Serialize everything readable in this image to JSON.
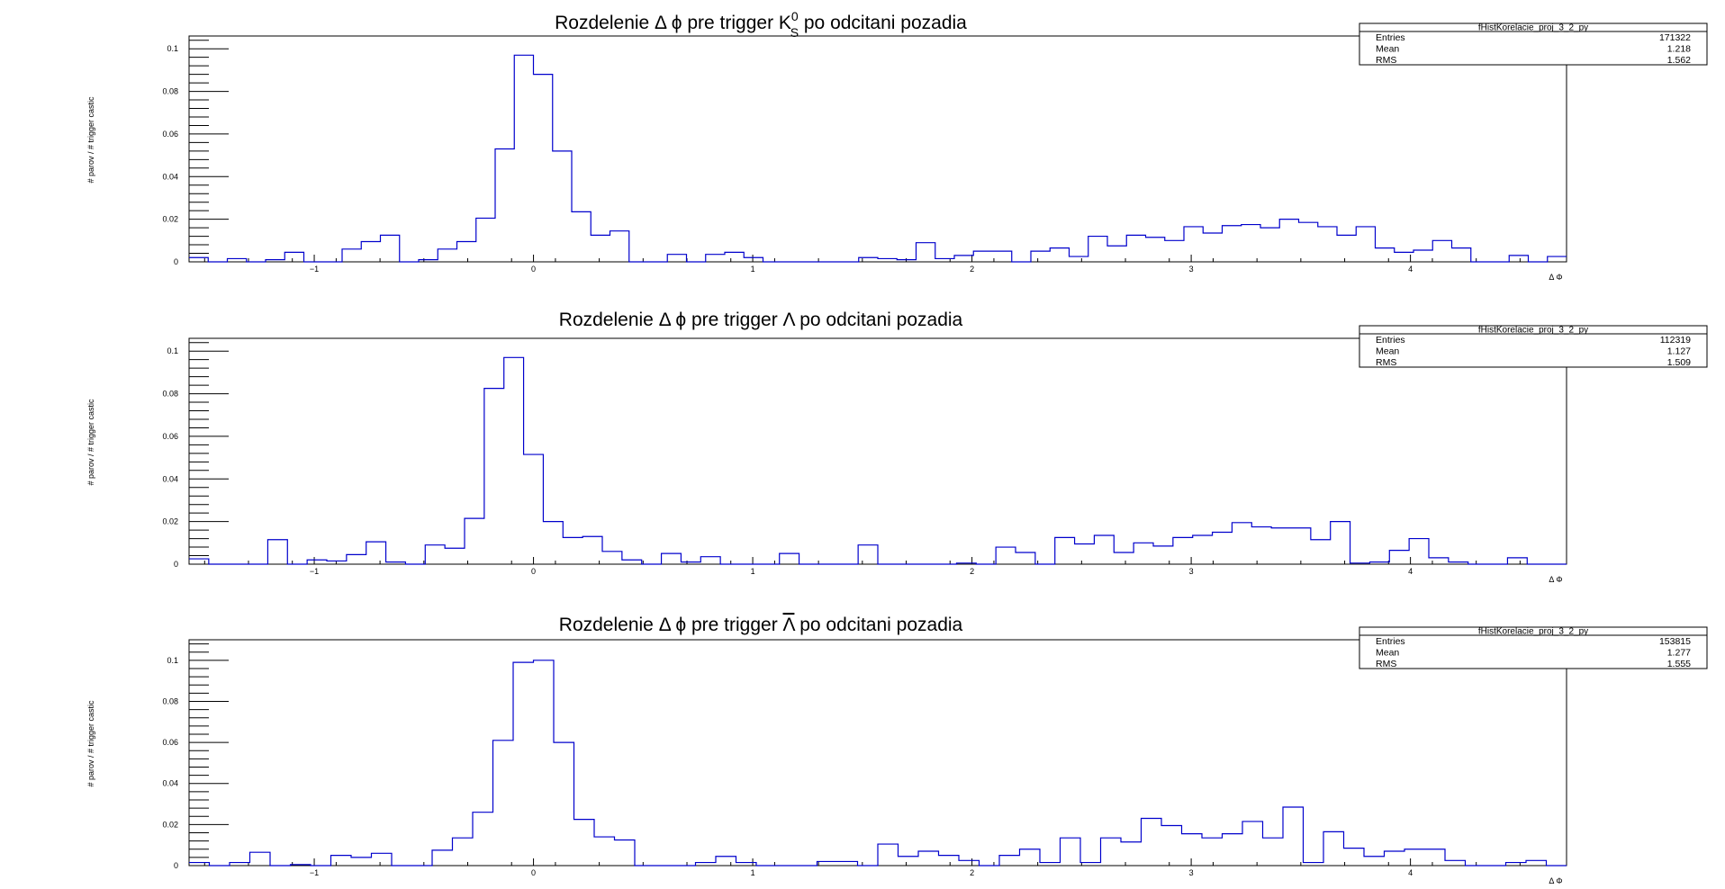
{
  "chart_data": [
    {
      "type": "histogram",
      "title": "Rozdelenie Δ ϕ pre trigger",
      "title_particle": "K",
      "title_particle_sup": "0",
      "title_particle_sub": "S",
      "title_suffix": "po odcitani pozadia",
      "xlabel": "Δ Φ",
      "ylabel": "# parov / # trigger castic",
      "xlim": [
        -1.571,
        4.712
      ],
      "ylim": [
        0,
        0.106
      ],
      "xticks": [
        -1,
        0,
        1,
        2,
        3,
        4
      ],
      "yticks": [
        0,
        0.02,
        0.04,
        0.06,
        0.08,
        0.1
      ],
      "ytick_labels": [
        "0",
        "0.02",
        "0.04",
        "0.06",
        "0.08",
        "0.1"
      ],
      "grid": false,
      "line_color": "#0000cc",
      "stats": {
        "name": "fHistKorelacie_proj_3_2_py",
        "rows": [
          [
            "Entries",
            "171322"
          ],
          [
            "Mean",
            "1.218"
          ],
          [
            "RMS",
            "1.562"
          ]
        ]
      },
      "values": [
        0.002,
        0,
        0.0015,
        0,
        0.001,
        0.0045,
        0,
        0,
        0.006,
        0.0095,
        0.0125,
        0,
        0.001,
        0.006,
        0.0095,
        0.0205,
        0.053,
        0.097,
        0.088,
        0.052,
        0.0235,
        0.0125,
        0.0145,
        0,
        0,
        0.0035,
        0,
        0.0035,
        0.0045,
        0.002,
        0,
        0,
        0,
        0,
        0,
        0.002,
        0.0015,
        0.001,
        0.009,
        0.0015,
        0.003,
        0.005,
        0.005,
        0,
        0.005,
        0.0065,
        0.0025,
        0.012,
        0.0075,
        0.0125,
        0.0115,
        0.01,
        0.0165,
        0.0135,
        0.017,
        0.0175,
        0.016,
        0.02,
        0.0185,
        0.0165,
        0.0125,
        0.0165,
        0.0065,
        0.0045,
        0.0055,
        0.01,
        0.0065,
        0,
        0,
        0.003,
        0,
        0.0025
      ]
    },
    {
      "type": "histogram",
      "title": "Rozdelenie Δ ϕ pre trigger",
      "title_particle": "Λ",
      "title_particle_sup": "",
      "title_particle_sub": "",
      "title_suffix": "po odcitani pozadia",
      "xlabel": "Δ Φ",
      "ylabel": "# parov / # trigger castic",
      "xlim": [
        -1.571,
        4.712
      ],
      "ylim": [
        0,
        0.106
      ],
      "xticks": [
        -1,
        0,
        1,
        2,
        3,
        4
      ],
      "yticks": [
        0,
        0.02,
        0.04,
        0.06,
        0.08,
        0.1
      ],
      "ytick_labels": [
        "0",
        "0.02",
        "0.04",
        "0.06",
        "0.08",
        "0.1"
      ],
      "grid": false,
      "line_color": "#0000cc",
      "stats": {
        "name": "fHistKorelacie_proj_3_2_py",
        "rows": [
          [
            "Entries",
            "112319"
          ],
          [
            "Mean",
            "1.127"
          ],
          [
            "RMS",
            "1.509"
          ]
        ]
      },
      "values": [
        0.0025,
        0,
        0,
        0,
        0.0115,
        0,
        0.002,
        0.0015,
        0.0045,
        0.0105,
        0.001,
        0,
        0.009,
        0.0075,
        0.0215,
        0.0825,
        0.097,
        0.0515,
        0.02,
        0.0125,
        0.013,
        0.006,
        0.002,
        0,
        0.005,
        0.001,
        0.0035,
        0,
        0,
        0,
        0.005,
        0,
        0,
        0,
        0.009,
        0,
        0,
        0,
        0,
        0.0005,
        0,
        0.008,
        0.0055,
        0,
        0.0125,
        0.0095,
        0.0135,
        0.0055,
        0.01,
        0.0085,
        0.0125,
        0.0135,
        0.015,
        0.0195,
        0.0175,
        0.017,
        0.017,
        0.0115,
        0.02,
        0.0005,
        0.001,
        0.0065,
        0.012,
        0.003,
        0.001,
        0,
        0,
        0.003,
        0,
        0
      ]
    },
    {
      "type": "histogram",
      "title": "Rozdelenie Δ ϕ pre trigger",
      "title_particle": "Λ",
      "title_particle_sup": "",
      "title_particle_sub": "",
      "title_particle_overline": true,
      "title_suffix": "po odcitani pozadia",
      "xlabel": "Δ Φ",
      "ylabel": "# parov / # trigger castic",
      "xlim": [
        -1.571,
        4.712
      ],
      "ylim": [
        0,
        0.11
      ],
      "xticks": [
        -1,
        0,
        1,
        2,
        3,
        4
      ],
      "yticks": [
        0,
        0.02,
        0.04,
        0.06,
        0.08,
        0.1
      ],
      "ytick_labels": [
        "0",
        "0.02",
        "0.04",
        "0.06",
        "0.08",
        "0.1"
      ],
      "grid": false,
      "line_color": "#0000cc",
      "stats": {
        "name": "fHistKorelacie_proj_3_2_py",
        "rows": [
          [
            "Entries",
            "153815"
          ],
          [
            "Mean",
            "1.277"
          ],
          [
            "RMS",
            "1.555"
          ]
        ]
      },
      "values": [
        0.0015,
        0,
        0.0015,
        0.0065,
        0,
        0.0005,
        0,
        0.005,
        0.004,
        0.006,
        0,
        0,
        0.0075,
        0.0135,
        0.026,
        0.061,
        0.099,
        0.1,
        0.06,
        0.0225,
        0.014,
        0.0125,
        0,
        0,
        0,
        0.0015,
        0.0045,
        0.0015,
        0,
        0,
        0,
        0.002,
        0.002,
        0,
        0.0105,
        0.0045,
        0.007,
        0.005,
        0.0025,
        0,
        0.005,
        0.008,
        0.0015,
        0.0135,
        0.0015,
        0.0135,
        0.0115,
        0.023,
        0.0195,
        0.0155,
        0.0135,
        0.0155,
        0.0215,
        0.0135,
        0.0285,
        0.0015,
        0.0165,
        0.0085,
        0.0045,
        0.007,
        0.008,
        0.008,
        0.0025,
        0,
        0,
        0.0015,
        0.0025,
        0
      ]
    }
  ]
}
